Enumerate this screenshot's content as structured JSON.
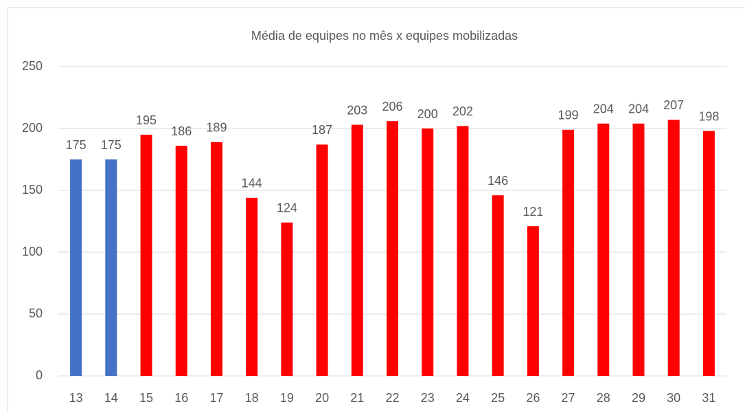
{
  "chart_data": {
    "type": "bar",
    "title": "Média de equipes no mês x equipes mobilizadas",
    "categories": [
      "13",
      "14",
      "15",
      "16",
      "17",
      "18",
      "19",
      "20",
      "21",
      "22",
      "23",
      "24",
      "25",
      "26",
      "27",
      "28",
      "29",
      "30",
      "31"
    ],
    "values": [
      175,
      175,
      195,
      186,
      189,
      144,
      124,
      187,
      203,
      206,
      200,
      202,
      146,
      121,
      199,
      204,
      204,
      207,
      198
    ],
    "colors": [
      "#4472c4",
      "#4472c4",
      "#ff0000",
      "#ff0000",
      "#ff0000",
      "#ff0000",
      "#ff0000",
      "#ff0000",
      "#ff0000",
      "#ff0000",
      "#ff0000",
      "#ff0000",
      "#ff0000",
      "#ff0000",
      "#ff0000",
      "#ff0000",
      "#ff0000",
      "#ff0000",
      "#ff0000"
    ],
    "ylim": [
      0,
      250
    ],
    "yticks": [
      0,
      50,
      100,
      150,
      200,
      250
    ],
    "grid": true
  }
}
